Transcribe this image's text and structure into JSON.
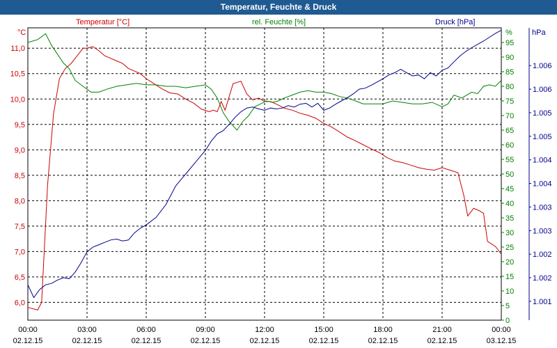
{
  "window": {
    "title": "Temperatur, Feuchte & Druck"
  },
  "chart_data": {
    "type": "line",
    "title": "Temperatur, Feuchte & Druck",
    "x_range": [
      0,
      24
    ],
    "x_ticks": [
      {
        "time": "00:00",
        "date": "02.12.15"
      },
      {
        "time": "03:00",
        "date": "02.12.15"
      },
      {
        "time": "06:00",
        "date": "02.12.15"
      },
      {
        "time": "09:00",
        "date": "02.12.15"
      },
      {
        "time": "12:00",
        "date": "02.12.15"
      },
      {
        "time": "15:00",
        "date": "02.12.15"
      },
      {
        "time": "18:00",
        "date": "02.12.15"
      },
      {
        "time": "21:00",
        "date": "02.12.15"
      },
      {
        "time": "00:00",
        "date": "03.12.15"
      }
    ],
    "grid": true,
    "axes": {
      "temperature": {
        "label": "Temperatur [°C]",
        "unit": "°C",
        "color": "#cc0000",
        "side": "left",
        "range": [
          5.65,
          11.4
        ],
        "ticks": [
          {
            "v": 6.0,
            "label": "6,0"
          },
          {
            "v": 6.5,
            "label": "6,5"
          },
          {
            "v": 7.0,
            "label": "7,0"
          },
          {
            "v": 7.5,
            "label": "7,5"
          },
          {
            "v": 8.0,
            "label": "8,0"
          },
          {
            "v": 8.5,
            "label": "8,5"
          },
          {
            "v": 9.0,
            "label": "9,0"
          },
          {
            "v": 9.5,
            "label": "9,5"
          },
          {
            "v": 10.0,
            "label": "10,0"
          },
          {
            "v": 10.5,
            "label": "10,5"
          },
          {
            "v": 11.0,
            "label": "11,0"
          }
        ]
      },
      "humidity": {
        "label": "rel. Feuchte [%]",
        "unit": "%",
        "color": "#008000",
        "side": "right",
        "range": [
          0,
          100
        ],
        "ticks": [
          {
            "v": 0,
            "label": "0"
          },
          {
            "v": 5,
            "label": "5"
          },
          {
            "v": 10,
            "label": "10"
          },
          {
            "v": 15,
            "label": "15"
          },
          {
            "v": 20,
            "label": "20"
          },
          {
            "v": 25,
            "label": "25"
          },
          {
            "v": 30,
            "label": "30"
          },
          {
            "v": 35,
            "label": "35"
          },
          {
            "v": 40,
            "label": "40"
          },
          {
            "v": 45,
            "label": "45"
          },
          {
            "v": 50,
            "label": "50"
          },
          {
            "v": 55,
            "label": "55"
          },
          {
            "v": 60,
            "label": "60"
          },
          {
            "v": 65,
            "label": "65"
          },
          {
            "v": 70,
            "label": "70"
          },
          {
            "v": 75,
            "label": "75"
          },
          {
            "v": 80,
            "label": "80"
          },
          {
            "v": 85,
            "label": "85"
          },
          {
            "v": 90,
            "label": "90"
          },
          {
            "v": 95,
            "label": "95"
          }
        ]
      },
      "pressure": {
        "label": "Druck [hPa]",
        "unit": "hPa",
        "color": "#00008b",
        "side": "right-outer",
        "range": [
          1000.6,
          1006.8
        ],
        "ticks": [
          {
            "v": 1001.0,
            "label": "1.001"
          },
          {
            "v": 1001.5,
            "label": "1.002"
          },
          {
            "v": 1002.0,
            "label": "1.002"
          },
          {
            "v": 1002.5,
            "label": "1.003"
          },
          {
            "v": 1003.0,
            "label": "1.003"
          },
          {
            "v": 1003.5,
            "label": "1.004"
          },
          {
            "v": 1004.0,
            "label": "1.004"
          },
          {
            "v": 1004.5,
            "label": "1.005"
          },
          {
            "v": 1005.0,
            "label": "1.005"
          },
          {
            "v": 1005.5,
            "label": "1.006"
          },
          {
            "v": 1006.0,
            "label": "1.006"
          }
        ]
      }
    },
    "series": [
      {
        "name": "Temperatur [°C]",
        "axis": "temperature",
        "color": "#cc0000",
        "x": [
          0,
          0.5,
          0.7,
          1.0,
          1.3,
          1.6,
          1.9,
          2.2,
          2.5,
          2.8,
          3.0,
          3.3,
          3.6,
          3.9,
          4.2,
          4.5,
          4.8,
          5.1,
          5.4,
          5.7,
          6.0,
          6.4,
          6.8,
          7.2,
          7.6,
          8.0,
          8.4,
          8.8,
          9.2,
          9.4,
          9.6,
          9.8,
          10.0,
          10.4,
          10.8,
          11.1,
          11.4,
          11.7,
          12.0,
          12.3,
          12.6,
          13.0,
          13.4,
          13.8,
          14.2,
          14.6,
          15.0,
          15.4,
          15.8,
          16.2,
          16.6,
          17.0,
          17.4,
          17.8,
          18.2,
          18.6,
          19.0,
          19.4,
          19.8,
          20.2,
          20.6,
          21.0,
          21.4,
          21.8,
          22.1,
          22.3,
          22.6,
          22.9,
          23.1,
          23.3,
          23.5,
          23.7,
          24.0
        ],
        "values": [
          5.9,
          5.85,
          6.0,
          8.3,
          9.7,
          10.4,
          10.6,
          10.7,
          10.85,
          11.0,
          11.0,
          11.03,
          10.95,
          10.85,
          10.8,
          10.75,
          10.7,
          10.6,
          10.55,
          10.5,
          10.4,
          10.3,
          10.2,
          10.12,
          10.1,
          10.0,
          9.92,
          9.8,
          9.75,
          9.78,
          9.75,
          9.95,
          9.78,
          10.3,
          10.35,
          10.1,
          9.98,
          10.02,
          9.95,
          9.95,
          9.9,
          9.82,
          9.78,
          9.72,
          9.68,
          9.62,
          9.52,
          9.45,
          9.35,
          9.25,
          9.18,
          9.1,
          9.02,
          8.95,
          8.85,
          8.78,
          8.75,
          8.7,
          8.65,
          8.62,
          8.6,
          8.65,
          8.6,
          8.55,
          8.1,
          7.7,
          7.85,
          7.8,
          7.75,
          7.2,
          7.15,
          7.1,
          6.95
        ]
      },
      {
        "name": "rel. Feuchte [%]",
        "axis": "humidity",
        "color": "#008000",
        "x": [
          0,
          0.5,
          0.9,
          1.2,
          1.5,
          1.8,
          2.1,
          2.4,
          2.8,
          3.2,
          3.6,
          4.0,
          4.5,
          5.0,
          5.5,
          6.0,
          6.5,
          7.0,
          7.5,
          8.0,
          8.5,
          9.0,
          9.3,
          9.6,
          9.9,
          10.2,
          10.6,
          10.9,
          11.2,
          11.5,
          11.8,
          12.1,
          12.4,
          12.7,
          13.0,
          13.4,
          13.8,
          14.2,
          14.6,
          15.0,
          15.4,
          15.8,
          16.2,
          16.6,
          17.0,
          17.5,
          18.0,
          18.5,
          19.0,
          19.5,
          20.0,
          20.5,
          21.0,
          21.3,
          21.6,
          22.0,
          22.5,
          22.8,
          23.1,
          23.4,
          23.7,
          24.0
        ],
        "values": [
          95,
          96,
          98,
          94,
          91,
          88,
          86,
          82,
          80,
          78,
          78,
          79,
          80,
          80.5,
          81,
          80.5,
          80.5,
          80,
          80,
          79.5,
          80,
          80.5,
          79,
          76,
          71,
          68,
          65,
          68,
          70,
          73,
          74,
          75,
          74.5,
          75,
          76,
          77,
          78,
          78.5,
          78,
          78,
          77.5,
          76.5,
          76,
          75,
          74,
          74,
          74,
          75,
          74.5,
          74,
          74,
          74.5,
          73,
          74,
          77,
          76,
          78,
          77.5,
          80,
          80.5,
          80,
          82
        ]
      },
      {
        "name": "Druck [hPa]",
        "axis": "pressure",
        "color": "#00008b",
        "x": [
          0,
          0.3,
          0.6,
          0.9,
          1.2,
          1.5,
          1.8,
          2.1,
          2.4,
          2.7,
          3.0,
          3.3,
          3.6,
          3.9,
          4.2,
          4.5,
          4.8,
          5.1,
          5.4,
          5.7,
          6.0,
          6.5,
          7.0,
          7.5,
          8.0,
          8.5,
          9.0,
          9.3,
          9.6,
          9.9,
          10.2,
          10.5,
          10.8,
          11.1,
          11.4,
          11.7,
          12.0,
          12.3,
          12.6,
          12.9,
          13.2,
          13.5,
          13.8,
          14.1,
          14.4,
          14.7,
          15.0,
          15.3,
          15.6,
          15.9,
          16.2,
          16.5,
          16.8,
          17.1,
          17.4,
          17.7,
          18.0,
          18.3,
          18.6,
          18.9,
          19.2,
          19.5,
          19.8,
          20.1,
          20.4,
          20.7,
          21.0,
          21.3,
          21.6,
          21.9,
          22.2,
          22.5,
          22.8,
          23.1,
          23.4,
          23.7,
          24.0
        ],
        "values": [
          1001.35,
          1001.08,
          1001.25,
          1001.35,
          1001.38,
          1001.45,
          1001.5,
          1001.48,
          1001.62,
          1001.82,
          1002.05,
          1002.15,
          1002.2,
          1002.25,
          1002.3,
          1002.32,
          1002.28,
          1002.3,
          1002.45,
          1002.55,
          1002.62,
          1002.78,
          1003.05,
          1003.45,
          1003.7,
          1003.95,
          1004.2,
          1004.4,
          1004.55,
          1004.62,
          1004.75,
          1004.9,
          1005.02,
          1005.1,
          1005.12,
          1005.08,
          1005.05,
          1005.1,
          1005.08,
          1005.1,
          1005.15,
          1005.12,
          1005.18,
          1005.2,
          1005.12,
          1005.2,
          1005.05,
          1005.1,
          1005.18,
          1005.25,
          1005.32,
          1005.4,
          1005.5,
          1005.52,
          1005.58,
          1005.65,
          1005.72,
          1005.8,
          1005.85,
          1005.92,
          1005.85,
          1005.78,
          1005.8,
          1005.72,
          1005.85,
          1005.78,
          1005.9,
          1005.95,
          1006.08,
          1006.2,
          1006.3,
          1006.38,
          1006.45,
          1006.52,
          1006.6,
          1006.68,
          1006.75
        ]
      }
    ]
  }
}
